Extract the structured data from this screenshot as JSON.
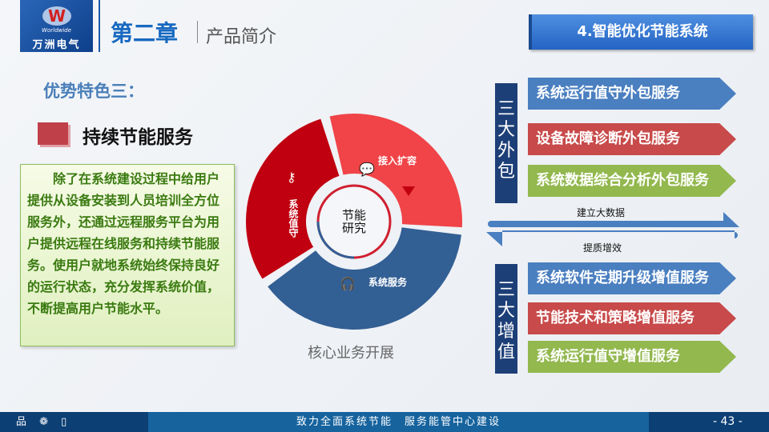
{
  "logo": {
    "letter": "W",
    "en": "Worldwide",
    "cn": "万洲电气"
  },
  "header": {
    "chapter": "第二章",
    "subtitle": "产品简介",
    "section": "4.智能优化节能系统"
  },
  "left": {
    "advantage": "优势特色三：",
    "heading": "持续节能服务",
    "body": "除了在系统建设过程中给用户提供从设备安装到人员培训全方位服务外，还通过远程服务平台为用户提供远程在线服务和持续节能服务。使用户就地系统始终保持良好的运行状态，充分发挥系统价值，不断提高用户节能水平。"
  },
  "donut": {
    "center": "节能研究",
    "segments": [
      {
        "label": "接入扩容",
        "icon": "chat-icon",
        "color": "#f04448"
      },
      {
        "label": "系统服务",
        "icon": "headphones-icon",
        "color": "#325f94"
      },
      {
        "label": "系统值守",
        "icon": "key-icon",
        "color": "#c00010"
      }
    ],
    "caption": "核心业务开展"
  },
  "outsourcing": {
    "label": "三大外包",
    "items": [
      {
        "text": "系统运行值守外包服务",
        "color": "#4a7fc0"
      },
      {
        "text": "设备故障诊断外包服务",
        "color": "#c84a4a"
      },
      {
        "text": "系统数据综合分析外包服务",
        "color": "#92b84e"
      }
    ]
  },
  "flow": {
    "forward": "建立大数据",
    "back": "提质增效"
  },
  "value_added": {
    "label": "三大增值",
    "items": [
      {
        "text": "系统软件定期升级增值服务",
        "color": "#4a7fc0"
      },
      {
        "text": "节能技术和策略增值服务",
        "color": "#c84a4a"
      },
      {
        "text": "系统运行值守增值服务",
        "color": "#92b84e"
      }
    ]
  },
  "footer": {
    "icons": "品 ❁ ▯",
    "slogan": "致力全面系统节能　服务能管中心建设",
    "page": "- 43 -"
  }
}
